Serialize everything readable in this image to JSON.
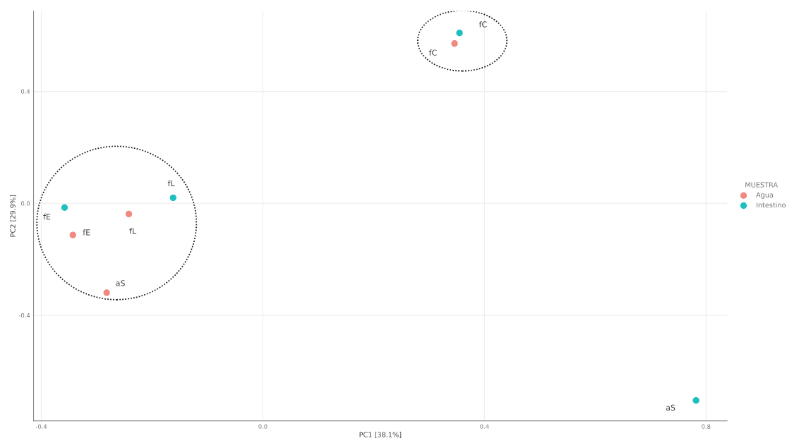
{
  "chart_data": {
    "type": "scatter",
    "xlabel": "PC1 [38.1%]",
    "ylabel": "PC2 [29.9%]",
    "legend_title": "MUESTRA",
    "series": [
      {
        "name": "Agua",
        "color": "#f08a80",
        "x": [
          -0.343,
          -0.242,
          -0.282,
          0.346
        ],
        "values": [
          -0.113,
          -0.038,
          -0.319,
          0.571
        ]
      },
      {
        "name": "Intestino",
        "color": "#1fbfbf",
        "x": [
          -0.358,
          -0.162,
          0.355,
          0.782
        ],
        "values": [
          -0.015,
          0.02,
          0.609,
          -0.704
        ]
      }
    ],
    "annotations": [
      {
        "text": "fE",
        "x": -0.343,
        "y": -0.113
      },
      {
        "text": "fL",
        "x": -0.242,
        "y": -0.038
      },
      {
        "text": "aS",
        "x": -0.282,
        "y": -0.319
      },
      {
        "text": "fC",
        "x": 0.346,
        "y": 0.571
      },
      {
        "text": "fE",
        "x": -0.358,
        "y": -0.015
      },
      {
        "text": "fL",
        "x": -0.162,
        "y": 0.02
      },
      {
        "text": "fC",
        "x": 0.355,
        "y": 0.609
      },
      {
        "text": "aS",
        "x": 0.782,
        "y": -0.704
      }
    ],
    "xlim": [
      -0.414,
      0.838
    ],
    "ylim": [
      -0.777,
      0.687
    ],
    "xticks": [
      -0.4,
      {
        "value": 0,
        "label": "0.0"
      },
      0.4,
      0.8
    ],
    "yticks": [
      -0.4,
      {
        "value": 0,
        "label": "0.0"
      },
      0.4
    ],
    "grid": true,
    "legend": "right",
    "marker": "circle"
  }
}
